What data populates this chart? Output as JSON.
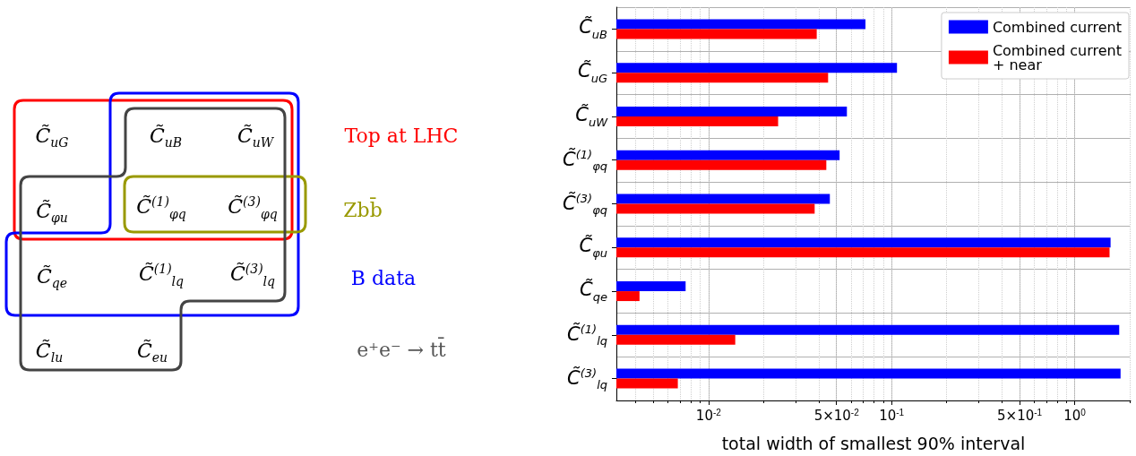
{
  "chart_data": [
    {
      "type": "other",
      "annotations": [
        "C̃$_{uG}$",
        "C̃$_{uB}$",
        "C̃$_{uW}$",
        "C̃$_{φu}$",
        "C̃$^{(1)}$$_{φq}$",
        "C̃$^{(3)}$$_{φq}$",
        "C̃$_{qe}$",
        "C̃$^{(1)}$$_{lq}$",
        "C̃$^{(3)}$$_{lq}$",
        "C̃$_{lu}$",
        "C̃$_{eu}$",
        "Top at LHC",
        "Zbb̄",
        "B data",
        "e⁺e⁻ → tt̄"
      ]
    },
    {
      "type": "bar",
      "orientation": "horizontal",
      "log": "x",
      "grid": true,
      "legend": "top right",
      "categories": [
        "C̃$_{uB}$",
        "C̃$_{uG}$",
        "C̃$_{uW}$",
        "C̃$^{(1)}$$_{φq}$",
        "C̃$^{(3)}$$_{φq}$",
        "C̃$_{φu}$",
        "C̃$_{qe}$",
        "C̃$^{(1)}$$_{lq}$",
        "C̃$^{(3)}$$_{lq}$"
      ],
      "series": [
        {
          "name": "Combined current",
          "color": "#0000ff",
          "values": [
            0.072,
            0.107,
            0.057,
            0.052,
            0.046,
            1.57,
            0.0075,
            1.75,
            1.78
          ]
        },
        {
          "name": "Combined current + near",
          "color": "#ff0000",
          "values": [
            0.039,
            0.045,
            0.024,
            0.044,
            0.038,
            1.55,
            0.0042,
            0.014,
            0.0068
          ]
        }
      ],
      "xlabel": "total width of smallest 90% interval",
      "xlim": [
        0.00314,
        2.02
      ],
      "xticks": [
        {
          "value": 0.01,
          "label": "10$^{-2}$"
        },
        {
          "value": 0.05,
          "label": "5×10$^{-2}$"
        },
        {
          "value": 0.1,
          "label": "10$^{-1}$"
        },
        {
          "value": 0.5,
          "label": "5×10$^{-1}$"
        },
        {
          "value": 1,
          "label": "10$^{0}$"
        }
      ]
    }
  ]
}
